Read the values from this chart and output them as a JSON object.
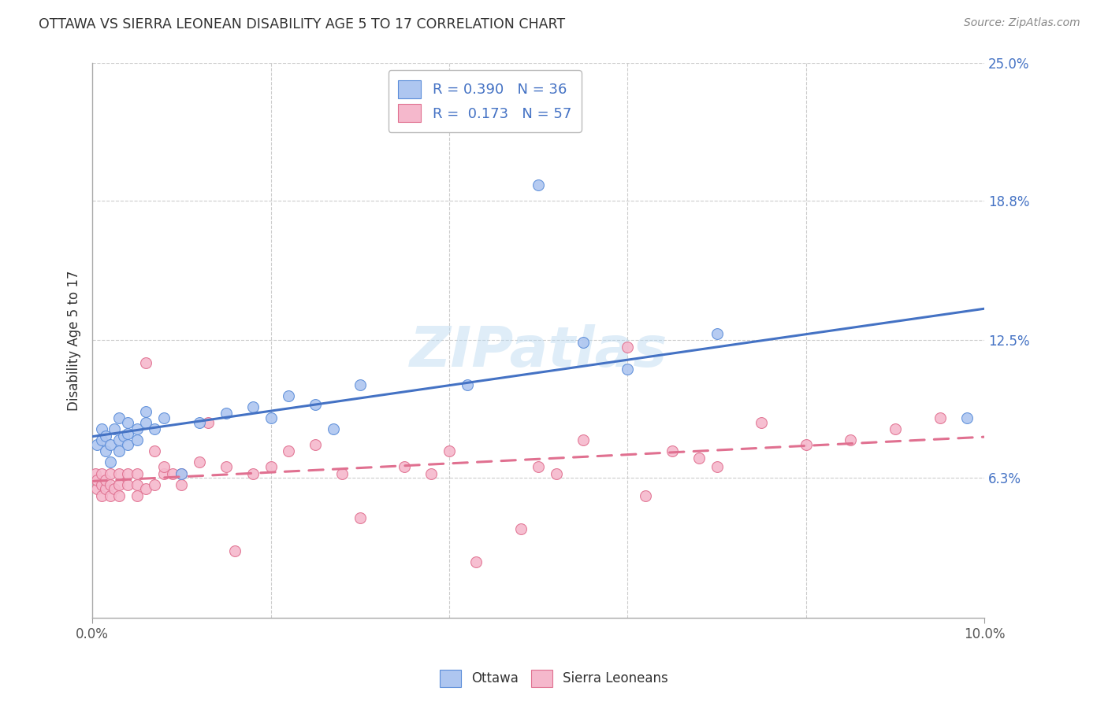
{
  "title": "OTTAWA VS SIERRA LEONEAN DISABILITY AGE 5 TO 17 CORRELATION CHART",
  "source": "Source: ZipAtlas.com",
  "ylabel": "Disability Age 5 to 17",
  "xlim": [
    0.0,
    0.1
  ],
  "ylim": [
    0.0,
    0.25
  ],
  "yticks_right": [
    0.063,
    0.125,
    0.188,
    0.25
  ],
  "yticklabels_right": [
    "6.3%",
    "12.5%",
    "18.8%",
    "25.0%"
  ],
  "legend_labels": [
    "Ottawa",
    "Sierra Leoneans"
  ],
  "ottawa_R": "0.390",
  "ottawa_N": "36",
  "sierra_R": "0.173",
  "sierra_N": "57",
  "ottawa_color": "#aec6f0",
  "ottawa_edge_color": "#5b8dd9",
  "ottawa_line_color": "#4472c4",
  "sierra_color": "#f5b8cc",
  "sierra_edge_color": "#e07090",
  "sierra_line_color": "#e07090",
  "background_color": "#ffffff",
  "grid_color": "#cccccc",
  "watermark": "ZIPatlas",
  "ottawa_x": [
    0.0005,
    0.001,
    0.001,
    0.0015,
    0.0015,
    0.002,
    0.002,
    0.0025,
    0.003,
    0.003,
    0.003,
    0.0035,
    0.004,
    0.004,
    0.004,
    0.005,
    0.005,
    0.006,
    0.006,
    0.007,
    0.008,
    0.01,
    0.012,
    0.015,
    0.018,
    0.02,
    0.022,
    0.025,
    0.027,
    0.03,
    0.042,
    0.05,
    0.055,
    0.06,
    0.07,
    0.098
  ],
  "ottawa_y": [
    0.078,
    0.08,
    0.085,
    0.075,
    0.082,
    0.07,
    0.078,
    0.085,
    0.075,
    0.08,
    0.09,
    0.082,
    0.078,
    0.083,
    0.088,
    0.08,
    0.085,
    0.088,
    0.093,
    0.085,
    0.09,
    0.065,
    0.088,
    0.092,
    0.095,
    0.09,
    0.1,
    0.096,
    0.085,
    0.105,
    0.105,
    0.195,
    0.124,
    0.112,
    0.128,
    0.09
  ],
  "sierra_x": [
    0.0003,
    0.0005,
    0.0005,
    0.001,
    0.001,
    0.001,
    0.0015,
    0.0015,
    0.002,
    0.002,
    0.002,
    0.0025,
    0.003,
    0.003,
    0.003,
    0.004,
    0.004,
    0.005,
    0.005,
    0.005,
    0.006,
    0.006,
    0.007,
    0.007,
    0.008,
    0.008,
    0.009,
    0.01,
    0.01,
    0.012,
    0.013,
    0.015,
    0.016,
    0.018,
    0.02,
    0.022,
    0.025,
    0.028,
    0.03,
    0.035,
    0.038,
    0.04,
    0.043,
    0.048,
    0.05,
    0.052,
    0.055,
    0.06,
    0.062,
    0.065,
    0.068,
    0.07,
    0.075,
    0.08,
    0.085,
    0.09,
    0.095
  ],
  "sierra_y": [
    0.065,
    0.058,
    0.062,
    0.055,
    0.06,
    0.065,
    0.058,
    0.062,
    0.055,
    0.06,
    0.065,
    0.058,
    0.055,
    0.06,
    0.065,
    0.06,
    0.065,
    0.055,
    0.06,
    0.065,
    0.058,
    0.115,
    0.06,
    0.075,
    0.065,
    0.068,
    0.065,
    0.06,
    0.065,
    0.07,
    0.088,
    0.068,
    0.03,
    0.065,
    0.068,
    0.075,
    0.078,
    0.065,
    0.045,
    0.068,
    0.065,
    0.075,
    0.025,
    0.04,
    0.068,
    0.065,
    0.08,
    0.122,
    0.055,
    0.075,
    0.072,
    0.068,
    0.088,
    0.078,
    0.08,
    0.085,
    0.09
  ]
}
